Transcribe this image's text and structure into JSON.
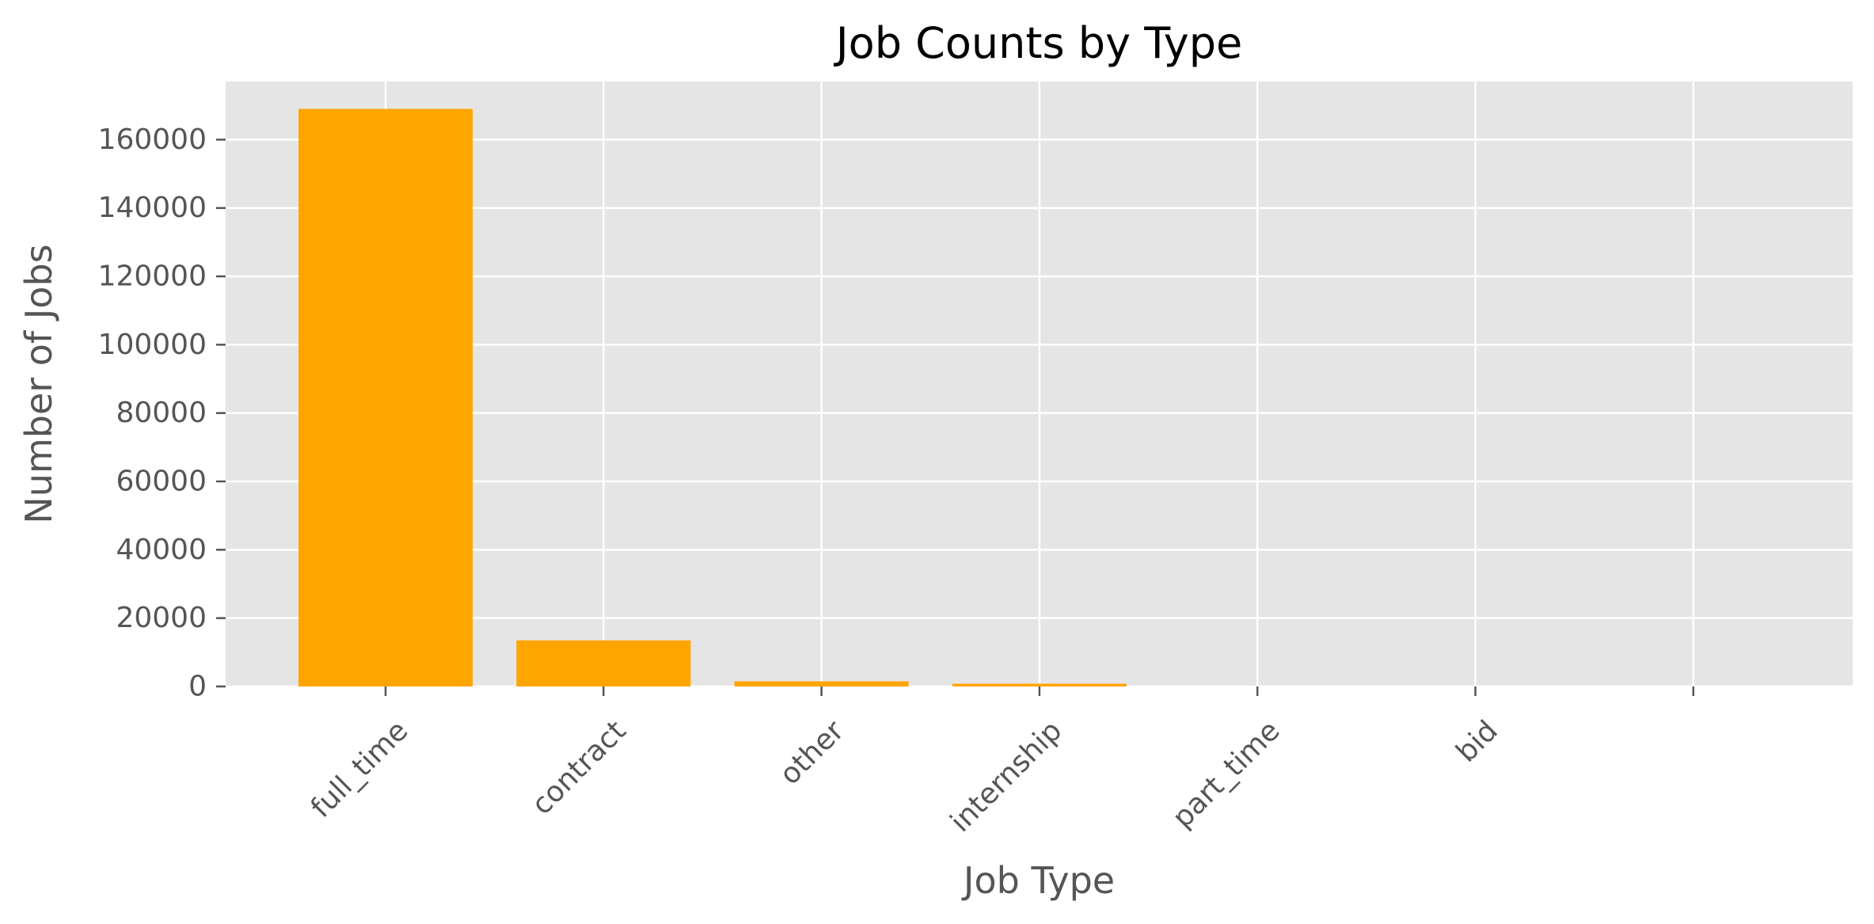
{
  "chart_data": {
    "type": "bar",
    "title": "Job Counts by Type",
    "xlabel": "Job Type",
    "ylabel": "Number of Jobs",
    "categories": [
      "full_time",
      "contract",
      "other",
      "internship",
      "part_time",
      "bid",
      ""
    ],
    "values": [
      169000,
      13500,
      1500,
      800,
      0,
      0,
      0
    ],
    "ylim": [
      0,
      177000
    ],
    "yticks": [
      0,
      20000,
      40000,
      60000,
      80000,
      100000,
      120000,
      140000,
      160000
    ],
    "ytick_labels": [
      "0",
      "20000",
      "40000",
      "60000",
      "80000",
      "100000",
      "120000",
      "140000",
      "160000"
    ],
    "grid": true,
    "colors": {
      "bar": "#FFA500",
      "plot_background": "#E5E5E5",
      "grid": "#FFFFFF",
      "text": "#555555",
      "title": "#000000"
    }
  }
}
